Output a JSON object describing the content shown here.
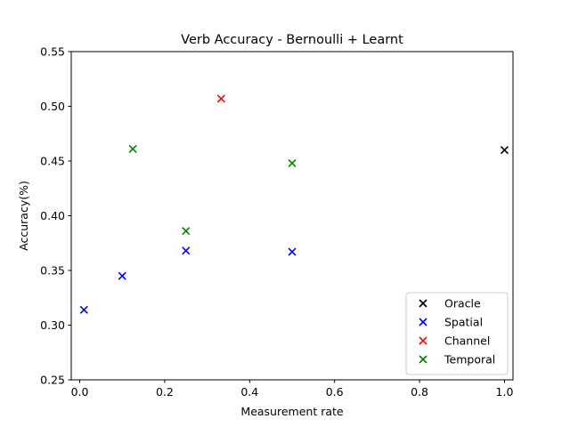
{
  "chart_data": {
    "type": "scatter",
    "title": "Verb Accuracy - Bernoulli + Learnt",
    "xlabel": "Measurement rate",
    "ylabel": "Accuracy(%)",
    "xlim": [
      -0.02,
      1.02
    ],
    "ylim": [
      0.25,
      0.55
    ],
    "xticks": [
      0.0,
      0.2,
      0.4,
      0.6,
      0.8,
      1.0
    ],
    "xtick_labels": [
      "0.0",
      "0.2",
      "0.4",
      "0.6",
      "0.8",
      "1.0"
    ],
    "yticks": [
      0.25,
      0.3,
      0.35,
      0.4,
      0.45,
      0.5,
      0.55
    ],
    "ytick_labels": [
      "0.25",
      "0.30",
      "0.35",
      "0.40",
      "0.45",
      "0.50",
      "0.55"
    ],
    "grid": false,
    "legend_position": "lower-right",
    "marker": "x",
    "series": [
      {
        "name": "Oracle",
        "color": "#000000",
        "points": [
          [
            1.0,
            0.46
          ]
        ]
      },
      {
        "name": "Spatial",
        "color": "#0000ff",
        "points": [
          [
            0.01,
            0.314
          ],
          [
            0.1,
            0.345
          ],
          [
            0.25,
            0.368
          ],
          [
            0.5,
            0.367
          ]
        ]
      },
      {
        "name": "Channel",
        "color": "#ff0000",
        "points": [
          [
            0.333,
            0.507
          ]
        ]
      },
      {
        "name": "Temporal",
        "color": "#008000",
        "points": [
          [
            0.125,
            0.461
          ],
          [
            0.25,
            0.386
          ],
          [
            0.5,
            0.448
          ]
        ]
      }
    ]
  }
}
